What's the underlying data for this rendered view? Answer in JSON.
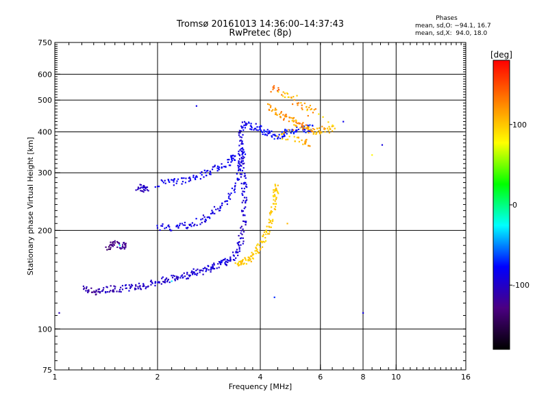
{
  "header": {
    "title": "Tromsø 20161013 14:36:00–14:37:43",
    "subtitle": "RwPretec (8p)",
    "phases_label": "Phases",
    "stats_O": "mean, sd,O: −94.1, 16.7",
    "stats_X": "mean, sd,X:  94.0, 18.0"
  },
  "colorbar": {
    "unit_label": "[deg]",
    "ticks": [
      {
        "value": 100,
        "label": "100"
      },
      {
        "value": 0,
        "label": "0"
      },
      {
        "value": -100,
        "label": "-100"
      }
    ],
    "range": [
      -180,
      180
    ],
    "colors": [
      "#000000",
      "#4b0082",
      "#0000ff",
      "#00ffff",
      "#00ff00",
      "#ffff00",
      "#ff8000",
      "#ff0000"
    ]
  },
  "chart_data": {
    "type": "scatter",
    "xlabel": "Frequency [MHz]",
    "ylabel": "Stationary phase Virtual Height [km]",
    "xscale": "log",
    "yscale": "log",
    "xlim": [
      1,
      16
    ],
    "ylim": [
      75,
      750
    ],
    "x_ticks": [
      {
        "value": 1,
        "label": "1"
      },
      {
        "value": 2,
        "label": "2"
      },
      {
        "value": 4,
        "label": "4"
      },
      {
        "value": 6,
        "label": "6"
      },
      {
        "value": 8,
        "label": "8"
      },
      {
        "value": 10,
        "label": "10"
      },
      {
        "value": 16,
        "label": "16"
      }
    ],
    "x_grid": [
      2,
      4,
      6,
      8,
      10
    ],
    "y_ticks": [
      {
        "value": 75,
        "label": "75"
      },
      {
        "value": 100,
        "label": "100"
      },
      {
        "value": 200,
        "label": "200"
      },
      {
        "value": 300,
        "label": "300"
      },
      {
        "value": 400,
        "label": "400"
      },
      {
        "value": 500,
        "label": "500"
      },
      {
        "value": 600,
        "label": "600"
      },
      {
        "value": 750,
        "label": "750"
      }
    ],
    "y_grid": [
      100,
      200,
      300,
      400,
      500,
      600
    ],
    "series": [
      {
        "points": [
          [
            1.22,
            133,
            -110
          ],
          [
            1.27,
            131,
            -118
          ],
          [
            1.32,
            130,
            -112
          ],
          [
            1.38,
            131,
            -105
          ],
          [
            1.45,
            133,
            -108
          ],
          [
            1.52,
            133,
            -104
          ],
          [
            1.6,
            133,
            -100
          ],
          [
            1.68,
            134,
            -102
          ],
          [
            1.76,
            135,
            -98
          ],
          [
            1.85,
            136,
            -100
          ],
          [
            1.95,
            138,
            -96
          ],
          [
            2.05,
            140,
            -98
          ],
          [
            2.15,
            142,
            -95
          ],
          [
            2.25,
            143,
            -97
          ],
          [
            2.35,
            145,
            -95
          ],
          [
            2.45,
            146,
            -93
          ],
          [
            2.55,
            148,
            -95
          ],
          [
            2.65,
            150,
            -92
          ],
          [
            2.75,
            152,
            -94
          ],
          [
            2.85,
            154,
            -90
          ],
          [
            2.95,
            156,
            -92
          ],
          [
            3.05,
            158,
            -88
          ],
          [
            3.15,
            160,
            -90
          ],
          [
            3.25,
            163,
            -92
          ],
          [
            3.35,
            168,
            -94
          ],
          [
            3.45,
            175,
            -96
          ],
          [
            3.5,
            185,
            -98
          ],
          [
            3.55,
            200,
            -100
          ],
          [
            3.58,
            220,
            -96
          ],
          [
            3.6,
            240,
            -94
          ],
          [
            3.6,
            260,
            -92
          ],
          [
            3.58,
            280,
            -90
          ],
          [
            3.55,
            300,
            -94
          ],
          [
            3.52,
            320,
            -96
          ],
          [
            3.5,
            340,
            -92
          ],
          [
            3.5,
            370,
            -90
          ],
          [
            3.52,
            400,
            -88
          ],
          [
            3.6,
            420,
            -86
          ]
        ]
      },
      {
        "points": [
          [
            2.0,
            205,
            -90
          ],
          [
            2.15,
            203,
            -88
          ],
          [
            2.3,
            205,
            -86
          ],
          [
            2.45,
            208,
            -90
          ],
          [
            2.6,
            212,
            -88
          ],
          [
            2.75,
            218,
            -86
          ],
          [
            2.9,
            225,
            -90
          ],
          [
            3.05,
            235,
            -88
          ],
          [
            3.2,
            248,
            -86
          ],
          [
            3.35,
            268,
            -84
          ],
          [
            3.45,
            290,
            -86
          ],
          [
            3.5,
            320,
            -88
          ],
          [
            3.55,
            350,
            -84
          ]
        ]
      },
      {
        "points": [
          [
            2.0,
            278,
            -86
          ],
          [
            2.15,
            280,
            -84
          ],
          [
            2.3,
            283,
            -88
          ],
          [
            2.45,
            287,
            -86
          ],
          [
            2.6,
            292,
            -84
          ],
          [
            2.75,
            298,
            -88
          ],
          [
            2.9,
            305,
            -86
          ],
          [
            3.05,
            313,
            -84
          ],
          [
            3.2,
            322,
            -86
          ],
          [
            3.35,
            335,
            -82
          ]
        ]
      },
      {
        "points": [
          [
            3.7,
            420,
            -80
          ],
          [
            3.85,
            415,
            -84
          ],
          [
            4.0,
            410,
            -82
          ],
          [
            4.15,
            400,
            -78
          ],
          [
            4.3,
            395,
            -80
          ],
          [
            4.45,
            390,
            -76
          ],
          [
            4.6,
            392,
            -78
          ],
          [
            4.8,
            398,
            -74
          ],
          [
            5.0,
            402,
            -76
          ],
          [
            5.3,
            405,
            -72
          ],
          [
            5.6,
            410,
            -74
          ]
        ]
      },
      {
        "points": [
          [
            1.42,
            178,
            -130
          ],
          [
            1.46,
            180,
            -128
          ],
          [
            1.5,
            182,
            -125
          ],
          [
            1.55,
            178,
            -120
          ],
          [
            1.6,
            180,
            -122
          ]
        ]
      },
      {
        "points": [
          [
            1.75,
            268,
            -105
          ],
          [
            1.8,
            270,
            -102
          ],
          [
            1.85,
            268,
            -100
          ]
        ]
      },
      {
        "points": [
          [
            3.4,
            157,
            100
          ],
          [
            3.5,
            158,
            102
          ],
          [
            3.6,
            160,
            98
          ],
          [
            3.7,
            163,
            100
          ],
          [
            3.8,
            167,
            96
          ],
          [
            3.9,
            172,
            102
          ],
          [
            4.0,
            180,
            100
          ],
          [
            4.1,
            190,
            98
          ],
          [
            4.2,
            200,
            96
          ],
          [
            4.3,
            212,
            100
          ],
          [
            4.35,
            225,
            102
          ],
          [
            4.4,
            240,
            98
          ],
          [
            4.42,
            255,
            96
          ],
          [
            4.45,
            270,
            100
          ]
        ]
      },
      {
        "points": [
          [
            4.2,
            480,
            120
          ],
          [
            4.4,
            460,
            110
          ],
          [
            4.6,
            450,
            125
          ],
          [
            4.8,
            440,
            115
          ],
          [
            5.0,
            430,
            105
          ],
          [
            5.2,
            420,
            130
          ],
          [
            5.4,
            415,
            110
          ],
          [
            5.6,
            405,
            120
          ],
          [
            5.8,
            400,
            100
          ],
          [
            6.0,
            405,
            115
          ],
          [
            6.3,
            408,
            105
          ],
          [
            6.6,
            410,
            95
          ],
          [
            4.3,
            550,
            140
          ],
          [
            4.6,
            520,
            100
          ],
          [
            5.0,
            500,
            125
          ],
          [
            5.4,
            480,
            110
          ],
          [
            5.8,
            460,
            130
          ],
          [
            4.5,
            390,
            95
          ],
          [
            5.1,
            380,
            105
          ],
          [
            5.5,
            370,
            115
          ]
        ]
      },
      {
        "points": [
          [
            1.03,
            112,
            -100
          ],
          [
            2.6,
            480,
            -90
          ],
          [
            7.0,
            430,
            -80
          ],
          [
            8.0,
            112,
            -95
          ],
          [
            9.1,
            365,
            -100
          ],
          [
            8.5,
            340,
            80
          ],
          [
            4.4,
            125,
            -60
          ],
          [
            4.8,
            210,
            110
          ],
          [
            2.2,
            140,
            -40
          ],
          [
            1.55,
            180,
            -20
          ]
        ]
      }
    ]
  }
}
